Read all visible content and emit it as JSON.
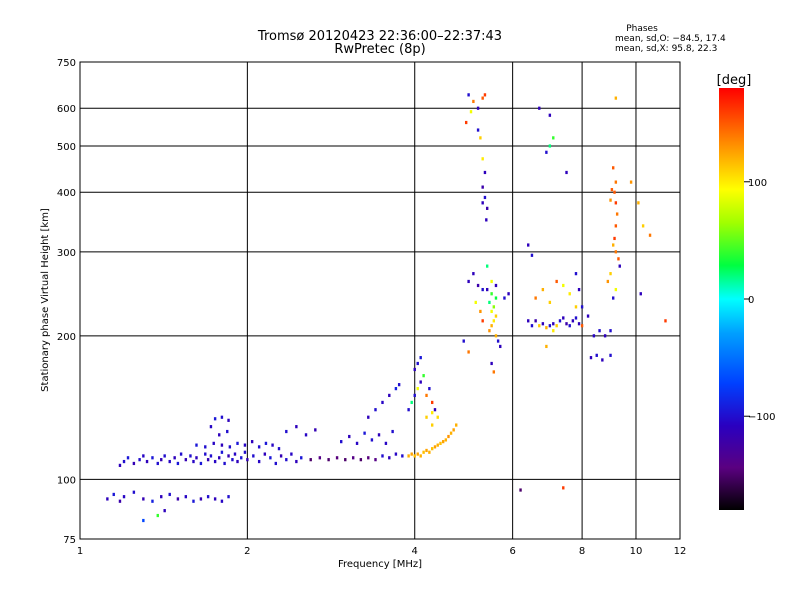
{
  "chart_data": {
    "type": "scatter",
    "title": "Tromsø 20120423 22:36:00–22:37:43",
    "subtitle": "RwPretec (8p)",
    "xlabel": "Frequency [MHz]",
    "ylabel": "Stationary phase Virtual Height [km]",
    "x_scale": "log",
    "y_scale": "log",
    "xlim": [
      1,
      12
    ],
    "ylim": [
      75,
      750
    ],
    "x_ticks": [
      "1",
      "2",
      "4",
      "6",
      "8",
      "10",
      "12"
    ],
    "x_tick_values": [
      1,
      2,
      4,
      6,
      8,
      10,
      12
    ],
    "y_ticks": [
      "75",
      "100",
      "200",
      "300",
      "400",
      "500",
      "600",
      "750"
    ],
    "y_tick_values": [
      75,
      100,
      200,
      300,
      400,
      500,
      600,
      750
    ],
    "grid": true,
    "phases_header": "Phases",
    "phases_o": "mean, sd,O: −84.5, 17.4",
    "phases_x": "mean, sd,X:  95.8, 22.3",
    "colorbar": {
      "label": "[deg]",
      "range": [
        -180,
        180
      ],
      "ticks": [
        "100",
        "0",
        "−100"
      ],
      "tick_values": [
        100,
        0,
        -100
      ]
    },
    "point_columns": [
      "freq_MHz",
      "height_km",
      "phase_deg"
    ],
    "points": [
      [
        1.12,
        91,
        -110
      ],
      [
        1.15,
        93,
        -95
      ],
      [
        1.18,
        90,
        -120
      ],
      [
        1.2,
        92,
        -105
      ],
      [
        1.25,
        94,
        -100
      ],
      [
        1.3,
        91,
        -115
      ],
      [
        1.35,
        90,
        -90
      ],
      [
        1.4,
        92,
        -110
      ],
      [
        1.45,
        93,
        -100
      ],
      [
        1.5,
        91,
        -120
      ],
      [
        1.55,
        92,
        -105
      ],
      [
        1.6,
        90,
        -95
      ],
      [
        1.65,
        91,
        -115
      ],
      [
        1.7,
        92,
        -100
      ],
      [
        1.75,
        91,
        -110
      ],
      [
        1.8,
        90,
        -105
      ],
      [
        1.85,
        92,
        -100
      ],
      [
        1.42,
        86,
        -110
      ],
      [
        1.38,
        84,
        40
      ],
      [
        1.3,
        82,
        -70
      ],
      [
        1.18,
        107,
        -110
      ],
      [
        1.2,
        109,
        -100
      ],
      [
        1.22,
        111,
        -95
      ],
      [
        1.25,
        108,
        -115
      ],
      [
        1.28,
        110,
        -100
      ],
      [
        1.3,
        112,
        -105
      ],
      [
        1.32,
        109,
        -110
      ],
      [
        1.35,
        111,
        -95
      ],
      [
        1.38,
        108,
        -100
      ],
      [
        1.4,
        110,
        -115
      ],
      [
        1.42,
        112,
        -100
      ],
      [
        1.45,
        109,
        -105
      ],
      [
        1.48,
        111,
        -110
      ],
      [
        1.5,
        108,
        -95
      ],
      [
        1.52,
        113,
        -100
      ],
      [
        1.55,
        110,
        -115
      ],
      [
        1.58,
        112,
        -100
      ],
      [
        1.6,
        109,
        -105
      ],
      [
        1.62,
        111,
        -110
      ],
      [
        1.65,
        108,
        -95
      ],
      [
        1.68,
        113,
        -100
      ],
      [
        1.7,
        110,
        -115
      ],
      [
        1.72,
        112,
        -100
      ],
      [
        1.75,
        109,
        -105
      ],
      [
        1.78,
        111,
        -110
      ],
      [
        1.8,
        114,
        -95
      ],
      [
        1.82,
        108,
        -100
      ],
      [
        1.85,
        112,
        -115
      ],
      [
        1.88,
        110,
        -100
      ],
      [
        1.9,
        113,
        -105
      ],
      [
        1.92,
        109,
        -110
      ],
      [
        1.95,
        111,
        -95
      ],
      [
        1.98,
        114,
        -100
      ],
      [
        2.0,
        110,
        -115
      ],
      [
        2.05,
        112,
        -100
      ],
      [
        2.1,
        109,
        -105
      ],
      [
        2.15,
        113,
        -110
      ],
      [
        2.2,
        111,
        -95
      ],
      [
        2.25,
        108,
        -100
      ],
      [
        2.3,
        112,
        -115
      ],
      [
        2.35,
        110,
        -100
      ],
      [
        2.4,
        113,
        -105
      ],
      [
        2.45,
        109,
        -110
      ],
      [
        2.5,
        111,
        -95
      ],
      [
        1.62,
        118,
        -95
      ],
      [
        1.68,
        117,
        -100
      ],
      [
        1.74,
        119,
        -105
      ],
      [
        1.8,
        118,
        -110
      ],
      [
        1.86,
        117,
        -100
      ],
      [
        1.92,
        119,
        -95
      ],
      [
        1.98,
        118,
        -105
      ],
      [
        2.04,
        120,
        -110
      ],
      [
        2.1,
        117,
        -100
      ],
      [
        2.16,
        119,
        -95
      ],
      [
        2.22,
        118,
        -105
      ],
      [
        2.28,
        116,
        -100
      ],
      [
        1.78,
        124,
        -110
      ],
      [
        1.84,
        126,
        -100
      ],
      [
        1.72,
        129,
        -105
      ],
      [
        1.75,
        134,
        -95
      ],
      [
        1.8,
        135,
        -100
      ],
      [
        1.85,
        133,
        -110
      ],
      [
        2.35,
        126,
        -100
      ],
      [
        2.45,
        129,
        -110
      ],
      [
        2.55,
        124,
        -105
      ],
      [
        2.65,
        127,
        -115
      ],
      [
        2.6,
        110,
        -150
      ],
      [
        2.7,
        111,
        -140
      ],
      [
        2.8,
        110,
        -150
      ],
      [
        2.9,
        111,
        -145
      ],
      [
        3.0,
        110,
        -150
      ],
      [
        3.1,
        111,
        -140
      ],
      [
        3.2,
        110,
        -150
      ],
      [
        3.3,
        111,
        -145
      ],
      [
        3.4,
        110,
        -140
      ],
      [
        3.5,
        112,
        -100
      ],
      [
        3.6,
        111,
        -110
      ],
      [
        3.7,
        113,
        -105
      ],
      [
        3.8,
        112,
        -100
      ],
      [
        2.95,
        120,
        -100
      ],
      [
        3.05,
        123,
        -110
      ],
      [
        3.15,
        119,
        -105
      ],
      [
        3.25,
        125,
        -95
      ],
      [
        3.35,
        121,
        -100
      ],
      [
        3.45,
        124,
        -110
      ],
      [
        3.55,
        119,
        -105
      ],
      [
        3.65,
        126,
        -100
      ],
      [
        3.3,
        135,
        -110
      ],
      [
        3.4,
        140,
        -100
      ],
      [
        3.5,
        145,
        -105
      ],
      [
        3.6,
        150,
        -110
      ],
      [
        3.7,
        155,
        -90
      ],
      [
        3.75,
        158,
        -100
      ],
      [
        3.9,
        112,
        120
      ],
      [
        3.95,
        113,
        125
      ],
      [
        4.0,
        112,
        115
      ],
      [
        4.05,
        113,
        125
      ],
      [
        4.1,
        112,
        120
      ],
      [
        4.15,
        114,
        115
      ],
      [
        4.2,
        115,
        125
      ],
      [
        4.25,
        114,
        120
      ],
      [
        4.3,
        116,
        115
      ],
      [
        4.35,
        117,
        125
      ],
      [
        4.4,
        118,
        120
      ],
      [
        4.45,
        119,
        115
      ],
      [
        4.5,
        120,
        125
      ],
      [
        4.55,
        121,
        120
      ],
      [
        4.6,
        123,
        130
      ],
      [
        4.65,
        125,
        120
      ],
      [
        4.7,
        127,
        125
      ],
      [
        4.75,
        130,
        120
      ],
      [
        4.3,
        130,
        110
      ],
      [
        4.4,
        135,
        105
      ],
      [
        3.9,
        140,
        -100
      ],
      [
        3.95,
        145,
        20
      ],
      [
        4.0,
        150,
        -100
      ],
      [
        4.05,
        155,
        90
      ],
      [
        4.1,
        160,
        -110
      ],
      [
        4.0,
        170,
        -110
      ],
      [
        4.05,
        175,
        -100
      ],
      [
        4.1,
        180,
        -95
      ],
      [
        4.15,
        165,
        40
      ],
      [
        4.2,
        150,
        140
      ],
      [
        4.25,
        155,
        -100
      ],
      [
        4.3,
        145,
        160
      ],
      [
        4.35,
        140,
        -110
      ],
      [
        4.2,
        135,
        110
      ],
      [
        4.3,
        138,
        100
      ],
      [
        5.0,
        640,
        -100
      ],
      [
        5.1,
        620,
        140
      ],
      [
        5.2,
        600,
        -110
      ],
      [
        5.05,
        590,
        90
      ],
      [
        4.95,
        560,
        160
      ],
      [
        5.3,
        630,
        150
      ],
      [
        5.35,
        640,
        160
      ],
      [
        5.2,
        540,
        -100
      ],
      [
        5.25,
        520,
        110
      ],
      [
        5.3,
        470,
        100
      ],
      [
        5.35,
        440,
        -110
      ],
      [
        5.3,
        410,
        -120
      ],
      [
        5.35,
        390,
        -100
      ],
      [
        5.3,
        380,
        -110
      ],
      [
        5.4,
        370,
        -120
      ],
      [
        5.38,
        350,
        -110
      ],
      [
        5.4,
        250,
        -110
      ],
      [
        5.5,
        245,
        40
      ],
      [
        5.6,
        240,
        30
      ],
      [
        5.45,
        235,
        20
      ],
      [
        5.55,
        230,
        60
      ],
      [
        5.5,
        225,
        90
      ],
      [
        5.6,
        220,
        110
      ],
      [
        5.55,
        215,
        100
      ],
      [
        5.5,
        210,
        120
      ],
      [
        5.45,
        205,
        130
      ],
      [
        5.6,
        200,
        120
      ],
      [
        5.65,
        195,
        -100
      ],
      [
        5.7,
        190,
        -110
      ],
      [
        5.5,
        260,
        90
      ],
      [
        5.6,
        255,
        -110
      ],
      [
        5.8,
        240,
        -100
      ],
      [
        5.9,
        245,
        -110
      ],
      [
        5.2,
        255,
        -120
      ],
      [
        5.3,
        250,
        -100
      ],
      [
        5.0,
        260,
        -110
      ],
      [
        5.1,
        270,
        -110
      ],
      [
        5.15,
        235,
        90
      ],
      [
        5.25,
        225,
        130
      ],
      [
        5.3,
        215,
        160
      ],
      [
        5.4,
        280,
        20
      ],
      [
        5.5,
        175,
        -110
      ],
      [
        5.55,
        168,
        140
      ],
      [
        4.9,
        195,
        -100
      ],
      [
        5.0,
        185,
        140
      ],
      [
        6.4,
        215,
        -110
      ],
      [
        6.5,
        210,
        -100
      ],
      [
        6.6,
        215,
        -120
      ],
      [
        6.7,
        210,
        110
      ],
      [
        6.8,
        212,
        -110
      ],
      [
        6.9,
        208,
        120
      ],
      [
        7.0,
        210,
        -100
      ],
      [
        7.1,
        212,
        -110
      ],
      [
        7.2,
        210,
        110
      ],
      [
        7.3,
        215,
        -100
      ],
      [
        7.4,
        218,
        -110
      ],
      [
        7.5,
        212,
        -120
      ],
      [
        7.6,
        210,
        -100
      ],
      [
        7.7,
        215,
        -110
      ],
      [
        7.8,
        218,
        -100
      ],
      [
        7.9,
        212,
        -110
      ],
      [
        8.0,
        210,
        150
      ],
      [
        6.6,
        240,
        140
      ],
      [
        6.8,
        250,
        120
      ],
      [
        7.0,
        235,
        110
      ],
      [
        7.2,
        260,
        150
      ],
      [
        7.4,
        255,
        90
      ],
      [
        7.6,
        245,
        100
      ],
      [
        7.8,
        230,
        110
      ],
      [
        6.4,
        310,
        -110
      ],
      [
        6.5,
        295,
        -100
      ],
      [
        7.0,
        580,
        -110
      ],
      [
        7.1,
        520,
        40
      ],
      [
        7.0,
        500,
        20
      ],
      [
        6.9,
        485,
        -100
      ],
      [
        6.7,
        600,
        -110
      ],
      [
        7.5,
        440,
        -110
      ],
      [
        7.8,
        270,
        -100
      ],
      [
        7.9,
        250,
        -110
      ],
      [
        8.0,
        230,
        -100
      ],
      [
        8.2,
        220,
        -110
      ],
      [
        8.4,
        200,
        -105
      ],
      [
        8.6,
        205,
        -100
      ],
      [
        8.8,
        200,
        -110
      ],
      [
        9.0,
        205,
        -100
      ],
      [
        8.3,
        180,
        -110
      ],
      [
        8.5,
        182,
        -100
      ],
      [
        8.7,
        178,
        -110
      ],
      [
        9.0,
        182,
        -100
      ],
      [
        6.2,
        95,
        -150
      ],
      [
        7.4,
        96,
        160
      ],
      [
        6.9,
        190,
        120
      ],
      [
        7.1,
        205,
        100
      ],
      [
        9.1,
        450,
        150
      ],
      [
        9.2,
        420,
        140
      ],
      [
        9.15,
        400,
        150
      ],
      [
        9.2,
        380,
        160
      ],
      [
        9.25,
        360,
        140
      ],
      [
        9.2,
        340,
        150
      ],
      [
        9.15,
        320,
        160
      ],
      [
        9.2,
        300,
        140
      ],
      [
        9.3,
        290,
        150
      ],
      [
        9.1,
        310,
        120
      ],
      [
        9.0,
        270,
        110
      ],
      [
        8.9,
        260,
        130
      ],
      [
        9.2,
        250,
        90
      ],
      [
        9.1,
        240,
        -100
      ],
      [
        9.35,
        280,
        -110
      ],
      [
        9.2,
        630,
        120
      ],
      [
        9.8,
        420,
        130
      ],
      [
        10.1,
        380,
        120
      ],
      [
        10.3,
        340,
        110
      ],
      [
        10.6,
        325,
        140
      ],
      [
        11.3,
        215,
        160
      ],
      [
        10.2,
        245,
        -110
      ],
      [
        9.0,
        385,
        130
      ],
      [
        9.05,
        405,
        150
      ]
    ]
  }
}
